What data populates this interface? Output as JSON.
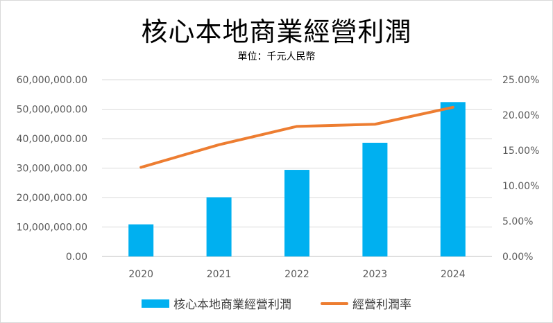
{
  "chart_data": {
    "type": "bar+line",
    "title": "核心本地商業經營利潤",
    "subtitle": "單位：千元人民幣",
    "categories": [
      "2020",
      "2021",
      "2022",
      "2023",
      "2024"
    ],
    "series": [
      {
        "name": "核心本地商業經營利潤",
        "type": "bar",
        "axis": "left",
        "color": "#00B0F0",
        "values": [
          10900000,
          20100000,
          29400000,
          38600000,
          52400000
        ]
      },
      {
        "name": "經營利潤率",
        "type": "line",
        "axis": "right",
        "color": "#ED7D31",
        "values": [
          0.126,
          0.158,
          0.184,
          0.187,
          0.211
        ]
      }
    ],
    "y_left": {
      "ylim": [
        0,
        60000000
      ],
      "ticks": [
        "0.00",
        "10,000,000.00",
        "20,000,000.00",
        "30,000,000.00",
        "40,000,000.00",
        "50,000,000.00",
        "60,000,000.00"
      ]
    },
    "y_right": {
      "ylim": [
        0,
        0.25
      ],
      "ticks": [
        "0.00%",
        "5.00%",
        "10.00%",
        "15.00%",
        "20.00%",
        "25.00%"
      ]
    },
    "grid": true,
    "legend_position": "bottom"
  }
}
